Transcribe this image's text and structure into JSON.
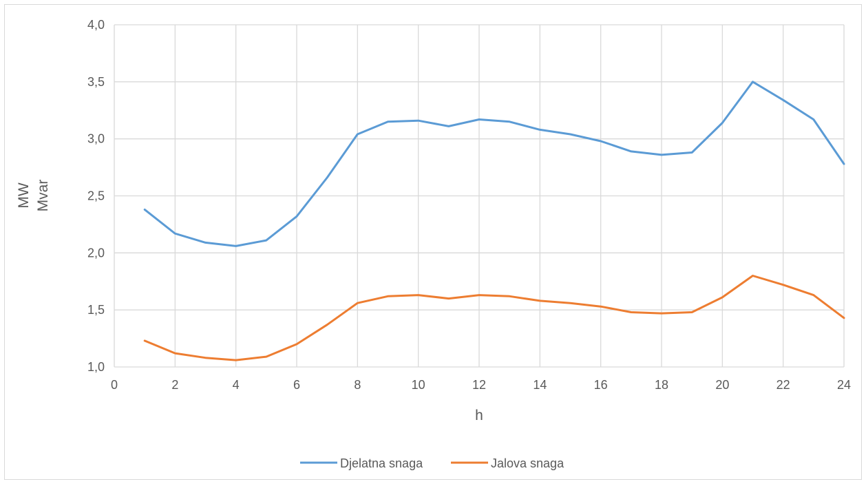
{
  "chart_data": {
    "type": "line",
    "title": "",
    "xlabel": "h",
    "ylabel_lines": [
      "MW",
      "Mvar"
    ],
    "xlim": [
      0,
      24
    ],
    "ylim": [
      1.0,
      4.0
    ],
    "x_ticks": [
      0,
      2,
      4,
      6,
      8,
      10,
      12,
      14,
      16,
      18,
      20,
      22,
      24
    ],
    "y_ticks": [
      1.0,
      1.5,
      2.0,
      2.5,
      3.0,
      3.5,
      4.0
    ],
    "y_tick_labels": [
      "1,0",
      "1,5",
      "2,0",
      "2,5",
      "3,0",
      "3,5",
      "4,0"
    ],
    "grid": true,
    "legend_position": "bottom",
    "x": [
      1,
      2,
      3,
      4,
      5,
      6,
      7,
      8,
      9,
      10,
      11,
      12,
      13,
      14,
      15,
      16,
      17,
      18,
      19,
      20,
      21,
      22,
      23,
      24
    ],
    "series": [
      {
        "name": "Djelatna snaga",
        "color": "#5b9bd5",
        "values": [
          2.38,
          2.17,
          2.09,
          2.06,
          2.11,
          2.32,
          2.66,
          3.04,
          3.15,
          3.16,
          3.11,
          3.17,
          3.15,
          3.08,
          3.04,
          2.98,
          2.89,
          2.86,
          2.88,
          3.14,
          3.5,
          3.34,
          3.17,
          2.78
        ]
      },
      {
        "name": "Jalova snaga",
        "color": "#ed7d31",
        "values": [
          1.23,
          1.12,
          1.08,
          1.06,
          1.09,
          1.2,
          1.37,
          1.56,
          1.62,
          1.63,
          1.6,
          1.63,
          1.62,
          1.58,
          1.56,
          1.53,
          1.48,
          1.47,
          1.48,
          1.61,
          1.8,
          1.72,
          1.63,
          1.43
        ]
      }
    ]
  }
}
